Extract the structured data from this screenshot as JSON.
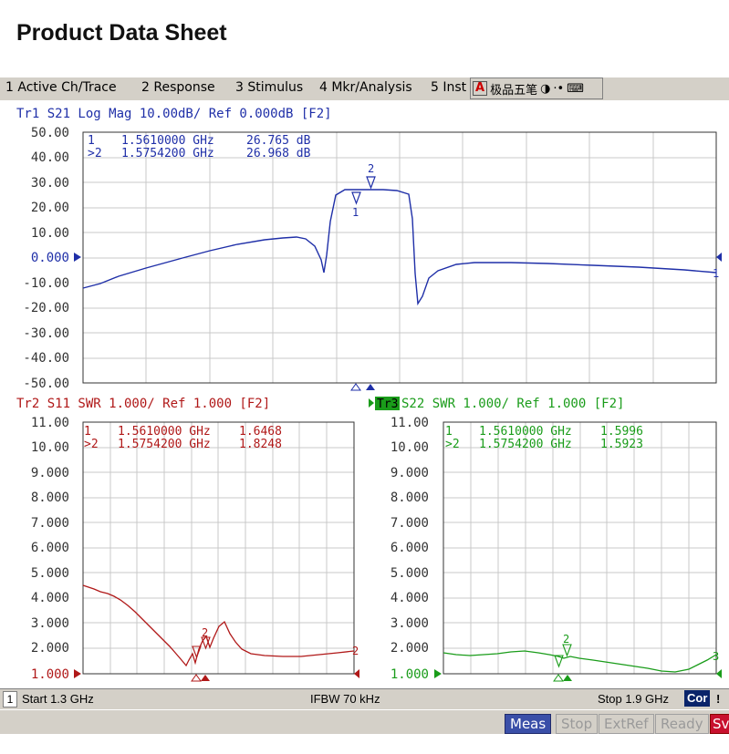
{
  "page_title": "Product Data Sheet",
  "menu": [
    "1 Active Ch/Trace",
    "2 Response",
    "3 Stimulus",
    "4 Mkr/Analysis",
    "5 Inst"
  ],
  "ime": {
    "label": "极品五笔",
    "a": "A",
    "moon": "◑",
    "dots": "·•",
    "kbd": "⌨"
  },
  "trace1": {
    "header": "Tr1  S21  Log Mag 10.00dB/ Ref 0.000dB  [F2]",
    "color": "#1f2fa8",
    "y_ticks": [
      "50.00",
      "40.00",
      "30.00",
      "20.00",
      "10.00",
      "0.000",
      "-10.00",
      "-20.00",
      "-30.00",
      "-40.00",
      "-50.00"
    ],
    "markers": [
      {
        "id": "1",
        "freq": "1.5610000 GHz",
        "value": "26.765 dB",
        "prefix": " 1"
      },
      {
        "id": "2",
        "freq": "1.5754200 GHz",
        "value": "26.968 dB",
        "prefix": ">2"
      }
    ],
    "end_label": "1"
  },
  "trace2": {
    "header": "Tr2  S11  SWR 1.000/ Ref 1.000  [F2]",
    "color": "#b01818",
    "y_ticks": [
      "11.00",
      "10.00",
      "9.000",
      "8.000",
      "7.000",
      "6.000",
      "5.000",
      "4.000",
      "3.000",
      "2.000",
      "1.000"
    ],
    "markers": [
      {
        "id": "1",
        "freq": "1.5610000 GHz",
        "value": "1.6468",
        "prefix": " 1"
      },
      {
        "id": "2",
        "freq": "1.5754200 GHz",
        "value": "1.8248",
        "prefix": ">2"
      }
    ],
    "end_label": "2"
  },
  "trace3": {
    "tag": "Tr3",
    "header": " S22  SWR 1.000/ Ref 1.000  [F2]",
    "color": "#1a9c1a",
    "y_ticks": [
      "11.00",
      "10.00",
      "9.000",
      "8.000",
      "7.000",
      "6.000",
      "5.000",
      "4.000",
      "3.000",
      "2.000",
      "1.000"
    ],
    "markers": [
      {
        "id": "1",
        "freq": "1.5610000 GHz",
        "value": "1.5996",
        "prefix": " 1"
      },
      {
        "id": "2",
        "freq": "1.5754200 GHz",
        "value": "1.5923",
        "prefix": ">2"
      }
    ],
    "end_label": "3"
  },
  "status": {
    "channel": "1",
    "start": "Start 1.3 GHz",
    "ifbw": "IFBW 70 kHz",
    "stop": "Stop 1.9 GHz",
    "cor": "Cor",
    "excl": "!"
  },
  "buttons": [
    "Meas",
    "Stop",
    "ExtRef",
    "Ready",
    "Sv"
  ]
}
